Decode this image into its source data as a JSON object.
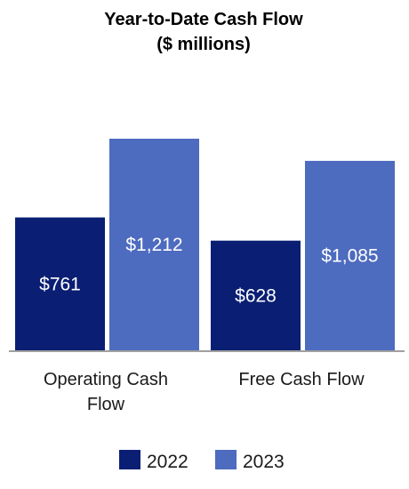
{
  "chart_data": {
    "type": "bar",
    "title": "Year-to-Date Cash Flow",
    "subtitle": "($ millions)",
    "categories": [
      "Operating Cash Flow",
      "Free Cash Flow"
    ],
    "category_lines": [
      [
        "Operating Cash",
        "Flow"
      ],
      [
        "Free Cash Flow"
      ]
    ],
    "series": [
      {
        "name": "2022",
        "values": [
          761,
          628
        ],
        "labels": [
          "$761",
          "$628"
        ],
        "color": "#0a1f73"
      },
      {
        "name": "2023",
        "values": [
          1212,
          1085
        ],
        "labels": [
          "$1,212",
          "$1,085"
        ],
        "color": "#4d6bbf"
      }
    ],
    "ylim": [
      0,
      1212
    ],
    "grid": false,
    "legend": "bottom",
    "axis_color": "#808080"
  }
}
